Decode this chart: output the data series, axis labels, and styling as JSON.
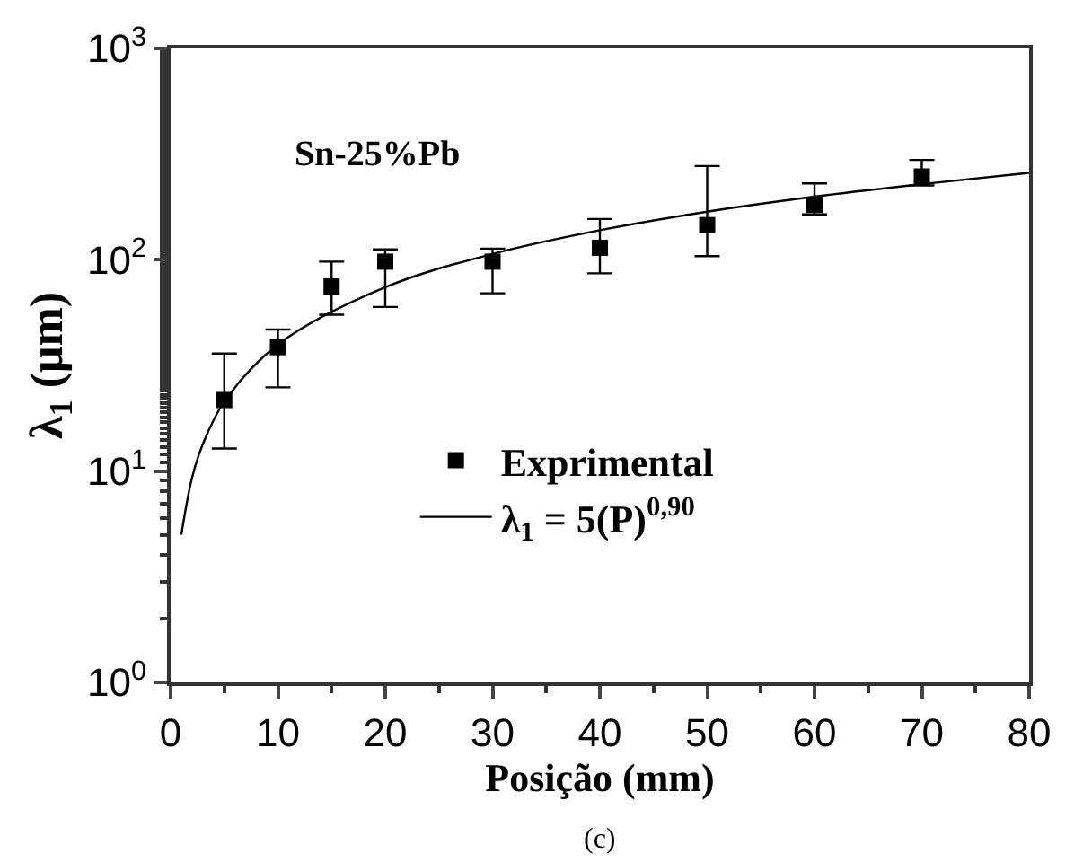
{
  "chart_data": {
    "type": "scatter",
    "xlabel": "Posição (mm)",
    "ylabel": "λ$_{1}$ (μm)",
    "x": [
      5,
      10,
      15,
      20,
      30,
      40,
      50,
      60,
      70
    ],
    "series": [
      {
        "name": "Exprimental",
        "color": "#000000",
        "marker": "square",
        "values": [
          21.7,
          38.6,
          74.8,
          98,
          98,
          114,
          146,
          182,
          248
        ],
        "errors": [
          [
            12.8,
            36
          ],
          [
            24.9,
            46.8
          ],
          [
            55,
            98
          ],
          [
            59.8,
            112
          ],
          [
            69.4,
            113
          ],
          [
            86.3,
            156
          ],
          [
            104,
            278
          ],
          [
            164,
            230
          ],
          [
            225,
            297
          ]
        ]
      },
      {
        "name": "λ$_{1}$ = 5(P)$^{0,90}$",
        "type": "line",
        "color": "#000000",
        "line_style": "solid",
        "x": [
          1,
          2,
          3,
          5,
          10,
          20,
          30,
          40,
          50,
          60,
          70,
          80
        ],
        "values": [
          5,
          9.3,
          13.4,
          21.3,
          39.7,
          74.1,
          106.6,
          138,
          169,
          199,
          228,
          258
        ]
      }
    ],
    "log": "y",
    "xlim": [
      0,
      80
    ],
    "xticks": [
      0,
      10,
      20,
      30,
      40,
      50,
      60,
      70,
      80
    ],
    "ylim": [
      1,
      1000
    ],
    "yticks": [
      {
        "value": 1,
        "label": "10$^{0}$"
      },
      {
        "value": 10,
        "label": "10$^{1}$"
      },
      {
        "value": 100,
        "label": "10$^{2}$"
      },
      {
        "value": 1000,
        "label": "10$^{3}$"
      }
    ],
    "legend": "bottom",
    "annotations": [
      "Sn-25%Pb",
      "(c)"
    ]
  }
}
